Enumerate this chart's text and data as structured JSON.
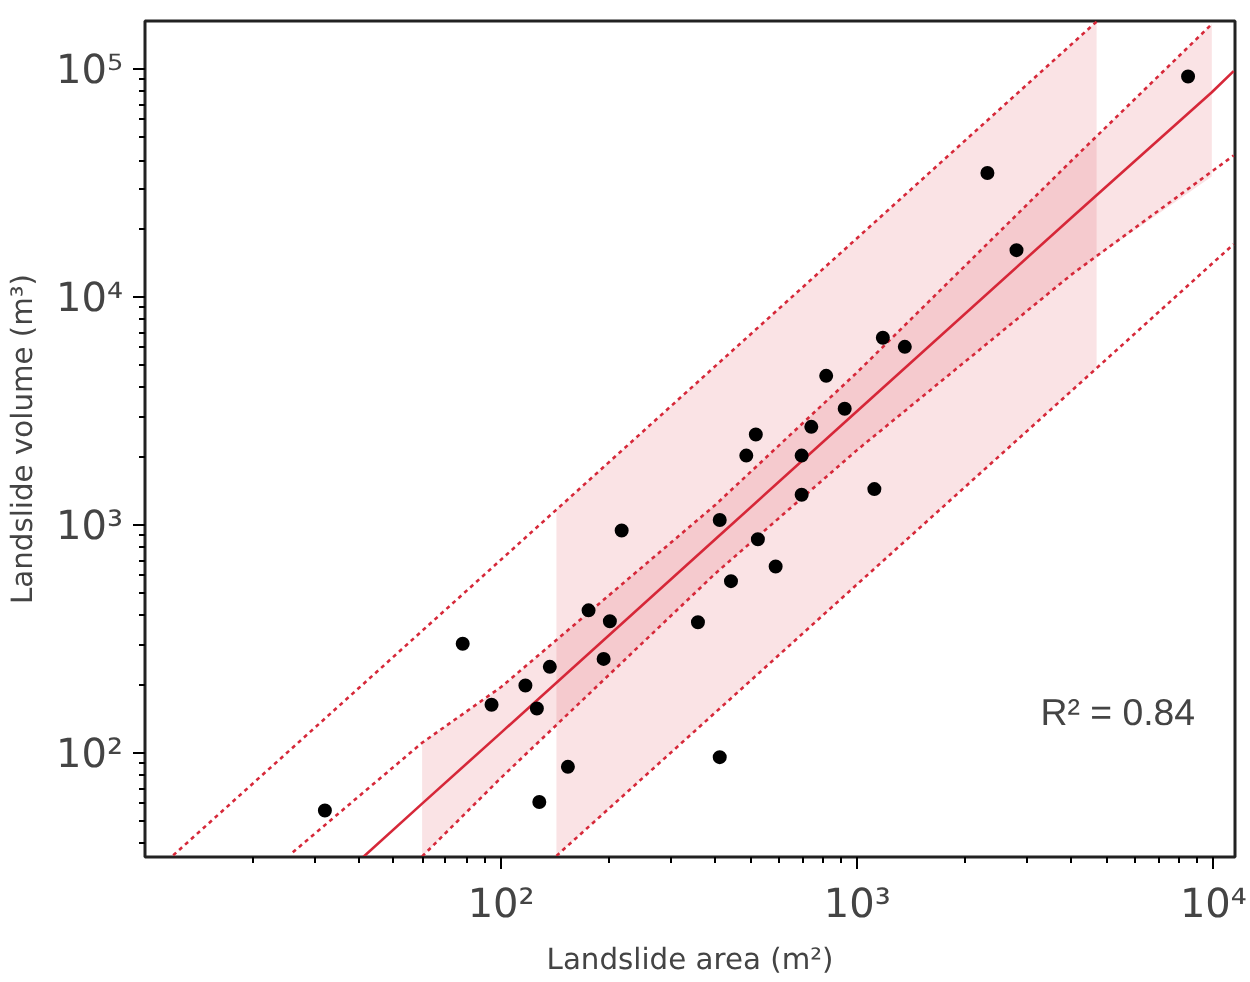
{
  "chart_data": {
    "type": "scatter",
    "xlabel": "Landslide area (m²)",
    "ylabel": "Landslide volume (m³)",
    "log": "xy",
    "grid": false,
    "xlim": [
      10,
      11500
    ],
    "ylim": [
      35,
      163000
    ],
    "xticks": [
      {
        "value": 100,
        "label": "10²"
      },
      {
        "value": 1000,
        "label": "10³"
      },
      {
        "value": 10000,
        "label": "10⁴"
      }
    ],
    "yticks": [
      {
        "value": 100,
        "label": "10²"
      },
      {
        "value": 1000,
        "label": "10³"
      },
      {
        "value": 10000,
        "label": "10⁴"
      },
      {
        "value": 100000,
        "label": "10⁵"
      }
    ],
    "annotations": [
      "R² = 0.84"
    ],
    "series": [
      {
        "type": "line",
        "color": "#d62839",
        "line_style": "solid",
        "marker": "none",
        "x": [
          41,
          60,
          100,
          400,
          1000,
          4000,
          9900,
          11400
        ],
        "values": [
          35,
          60,
          123,
          869,
          3170,
          22400,
          79400,
          98200
        ],
        "lower": [
          null,
          35.2,
          78,
          615,
          2140,
          12600,
          33900,
          null
        ],
        "upper": [
          null,
          111,
          195,
          1230,
          4690,
          39800,
          158000,
          null
        ]
      },
      {
        "type": "line",
        "color": "#d62839",
        "line_style": "dotted",
        "marker": "none",
        "x": [
          12,
          40,
          143,
          400,
          1000,
          4000,
          4700
        ],
        "values": [
          35.6,
          194,
          1170,
          5000,
          18200,
          129000,
          162000
        ],
        "lower": [
          null,
          null,
          35.4,
          151,
          551,
          3890,
          4890
        ],
        "upper": [
          null,
          null,
          1170,
          5000,
          18200,
          129000,
          162000
        ]
      },
      {
        "type": "line",
        "color": "#d62839",
        "line_style": "dotted",
        "marker": "none",
        "x": [
          143,
          400,
          1000,
          4000,
          11400
        ],
        "values": [
          35.4,
          151,
          551,
          3890,
          17100
        ]
      },
      {
        "type": "line",
        "color": "#d62839",
        "line_style": "dotted",
        "marker": "none",
        "x": [
          26,
          60,
          100,
          400,
          1000,
          4000,
          9900
        ],
        "values": [
          36.7,
          111,
          195,
          1230,
          4690,
          39800,
          158000
        ]
      },
      {
        "type": "line",
        "color": "#d62839",
        "line_style": "dotted",
        "marker": "none",
        "x": [
          60,
          100,
          400,
          1000,
          4000,
          11400
        ],
        "values": [
          35.2,
          78,
          615,
          2140,
          12600,
          41900
        ]
      },
      {
        "color": "#000000",
        "marker": "circle",
        "x": [
          32,
          78,
          94,
          117,
          126,
          137,
          128,
          154,
          176,
          194,
          202,
          218,
          357,
          698,
          1117,
          411,
          526,
          590,
          442,
          411,
          8490,
          2320,
          2800,
          1180,
          1360,
          818,
          922,
          519,
          743,
          488,
          698
        ],
        "values": [
          56,
          302,
          163,
          198,
          157,
          239,
          61,
          87,
          423,
          259,
          379,
          948,
          375,
          1360,
          1440,
          1054,
          867,
          659,
          568,
          96,
          93000,
          35100,
          16100,
          6640,
          6060,
          4520,
          3240,
          2500,
          2700,
          2020,
          2020
        ]
      }
    ]
  }
}
